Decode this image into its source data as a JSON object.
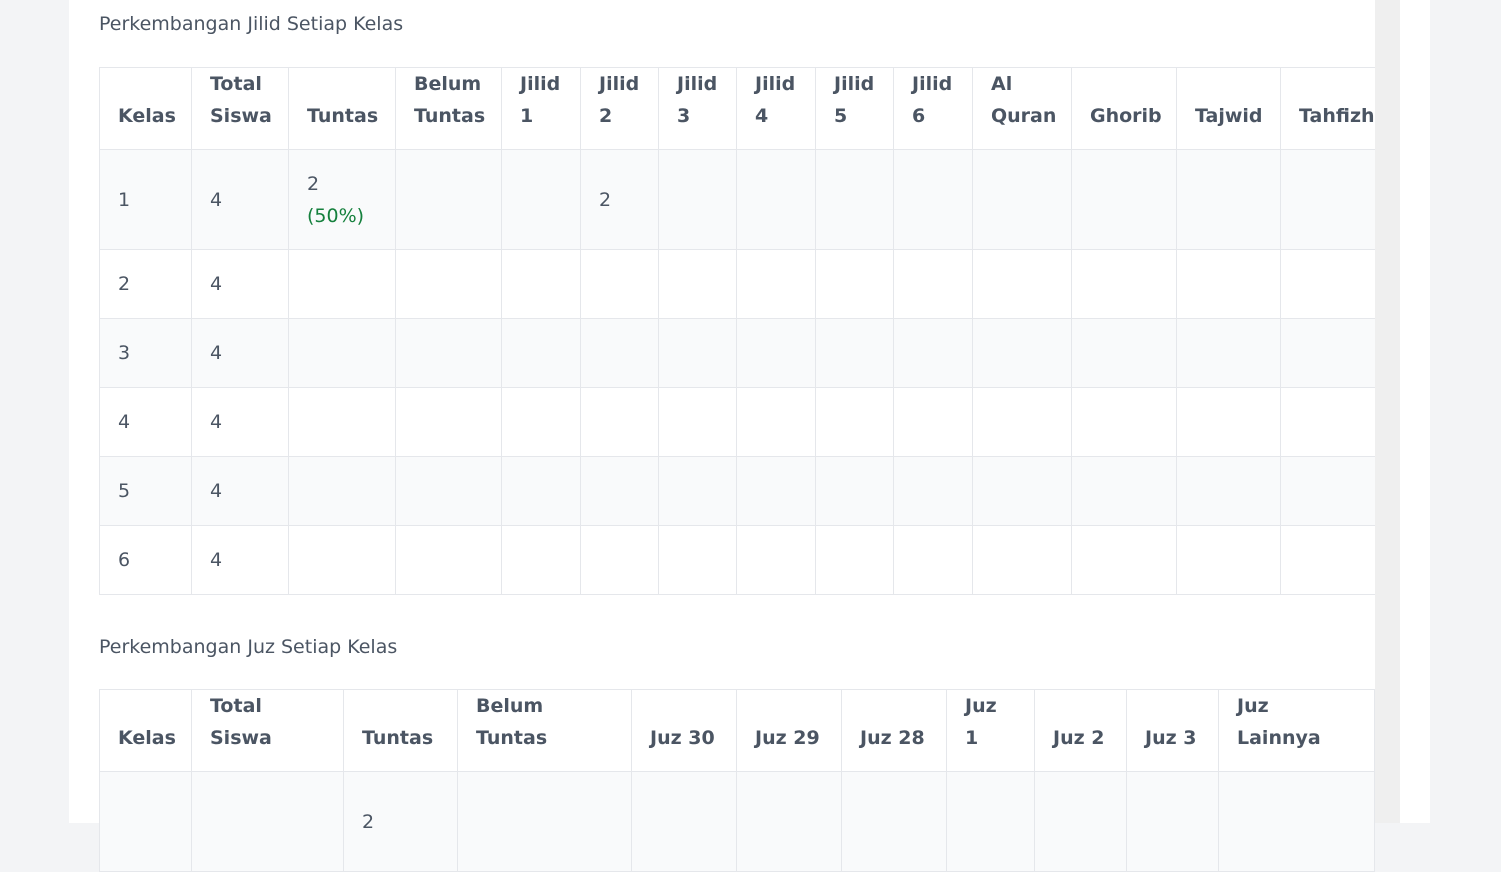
{
  "sections": [
    {
      "title": "Perkembangan Jilid Setiap Kelas",
      "headers": [
        "Kelas",
        "Total Siswa",
        "Tuntas",
        "Belum Tuntas",
        "Jilid 1",
        "Jilid 2",
        "Jilid 3",
        "Jilid 4",
        "Jilid 5",
        "Jilid 6",
        "Al Quran",
        "Ghorib",
        "Tajwid",
        "Tahfizh"
      ],
      "rows": [
        [
          "1",
          "4",
          {
            "value": "2",
            "percent": "(50%)"
          },
          null,
          null,
          "2",
          null,
          null,
          null,
          null,
          null,
          null,
          null,
          null
        ],
        [
          "2",
          "4",
          null,
          null,
          null,
          null,
          null,
          null,
          null,
          null,
          null,
          null,
          null,
          null
        ],
        [
          "3",
          "4",
          null,
          null,
          null,
          null,
          null,
          null,
          null,
          null,
          null,
          null,
          null,
          null
        ],
        [
          "4",
          "4",
          null,
          null,
          null,
          null,
          null,
          null,
          null,
          null,
          null,
          null,
          null,
          null
        ],
        [
          "5",
          "4",
          null,
          null,
          null,
          null,
          null,
          null,
          null,
          null,
          null,
          null,
          null,
          null
        ],
        [
          "6",
          "4",
          null,
          null,
          null,
          null,
          null,
          null,
          null,
          null,
          null,
          null,
          null,
          null
        ]
      ]
    },
    {
      "title": "Perkembangan Juz Setiap Kelas",
      "headers": [
        "Kelas",
        "Total Siswa",
        "Tuntas",
        "Belum Tuntas",
        "Juz 30",
        "Juz 29",
        "Juz 28",
        "Juz 1",
        "Juz 2",
        "Juz 3",
        "Juz Lainnya"
      ],
      "rows": [
        [
          null,
          null,
          {
            "value": "2"
          },
          null,
          null,
          null,
          null,
          null,
          null,
          null,
          null
        ]
      ]
    }
  ]
}
